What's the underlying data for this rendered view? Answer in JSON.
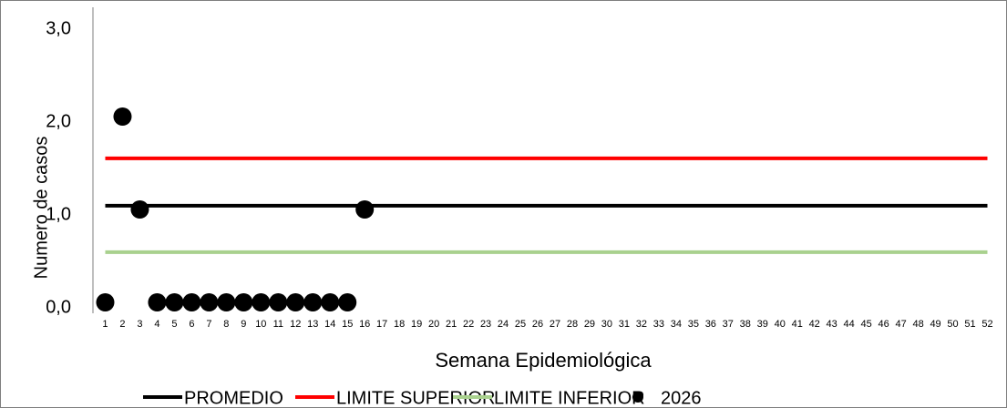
{
  "chart_data": {
    "type": "line",
    "x_label": "Semana Epidemiológica",
    "y_label": "Numero de casos",
    "categories": [
      "1",
      "2",
      "3",
      "4",
      "5",
      "6",
      "7",
      "8",
      "9",
      "10",
      "11",
      "12",
      "13",
      "14",
      "15",
      "16",
      "17",
      "18",
      "19",
      "20",
      "21",
      "22",
      "23",
      "24",
      "25",
      "26",
      "27",
      "28",
      "29",
      "30",
      "31",
      "32",
      "33",
      "34",
      "35",
      "36",
      "37",
      "38",
      "39",
      "40",
      "41",
      "42",
      "43",
      "44",
      "45",
      "46",
      "47",
      "48",
      "49",
      "50",
      "51",
      "52"
    ],
    "ylim": [
      0,
      3
    ],
    "yticks": [
      {
        "value": 0,
        "label": "0,0"
      },
      {
        "value": 1,
        "label": "1,0"
      },
      {
        "value": 2,
        "label": "2,0"
      },
      {
        "value": 3,
        "label": "3,0"
      }
    ],
    "series": [
      {
        "name": "PROMEDIO",
        "color": "#000000",
        "mode": "line",
        "values": [
          1.04,
          1.04,
          1.04,
          1.04,
          1.04,
          1.04,
          1.04,
          1.04,
          1.04,
          1.04,
          1.04,
          1.04,
          1.04,
          1.04,
          1.04,
          1.04,
          1.04,
          1.04,
          1.04,
          1.04,
          1.04,
          1.04,
          1.04,
          1.04,
          1.04,
          1.04,
          1.04,
          1.04,
          1.04,
          1.04,
          1.04,
          1.04,
          1.04,
          1.04,
          1.04,
          1.04,
          1.04,
          1.04,
          1.04,
          1.04,
          1.04,
          1.04,
          1.04,
          1.04,
          1.04,
          1.04,
          1.04,
          1.04,
          1.04,
          1.04,
          1.04,
          1.04
        ]
      },
      {
        "name": "LIMITE SUPERIOR",
        "color": "#ff0000",
        "mode": "line",
        "values": [
          1.55,
          1.55,
          1.55,
          1.55,
          1.55,
          1.55,
          1.55,
          1.55,
          1.55,
          1.55,
          1.55,
          1.55,
          1.55,
          1.55,
          1.55,
          1.55,
          1.55,
          1.55,
          1.55,
          1.55,
          1.55,
          1.55,
          1.55,
          1.55,
          1.55,
          1.55,
          1.55,
          1.55,
          1.55,
          1.55,
          1.55,
          1.55,
          1.55,
          1.55,
          1.55,
          1.55,
          1.55,
          1.55,
          1.55,
          1.55,
          1.55,
          1.55,
          1.55,
          1.55,
          1.55,
          1.55,
          1.55,
          1.55,
          1.55,
          1.55,
          1.55,
          1.55
        ]
      },
      {
        "name": "LIMITE INFERIOR",
        "color": "#a9d18e",
        "mode": "line",
        "values": [
          0.54,
          0.54,
          0.54,
          0.54,
          0.54,
          0.54,
          0.54,
          0.54,
          0.54,
          0.54,
          0.54,
          0.54,
          0.54,
          0.54,
          0.54,
          0.54,
          0.54,
          0.54,
          0.54,
          0.54,
          0.54,
          0.54,
          0.54,
          0.54,
          0.54,
          0.54,
          0.54,
          0.54,
          0.54,
          0.54,
          0.54,
          0.54,
          0.54,
          0.54,
          0.54,
          0.54,
          0.54,
          0.54,
          0.54,
          0.54,
          0.54,
          0.54,
          0.54,
          0.54,
          0.54,
          0.54,
          0.54,
          0.54,
          0.54,
          0.54,
          0.54,
          0.54
        ]
      },
      {
        "name": "2026",
        "color": "#000000",
        "mode": "marker",
        "values": [
          0,
          2,
          1,
          0,
          0,
          0,
          0,
          0,
          0,
          0,
          0,
          0,
          0,
          0,
          0,
          1,
          null,
          null,
          null,
          null,
          null,
          null,
          null,
          null,
          null,
          null,
          null,
          null,
          null,
          null,
          null,
          null,
          null,
          null,
          null,
          null,
          null,
          null,
          null,
          null,
          null,
          null,
          null,
          null,
          null,
          null,
          null,
          null,
          null,
          null,
          null,
          null
        ]
      }
    ]
  }
}
